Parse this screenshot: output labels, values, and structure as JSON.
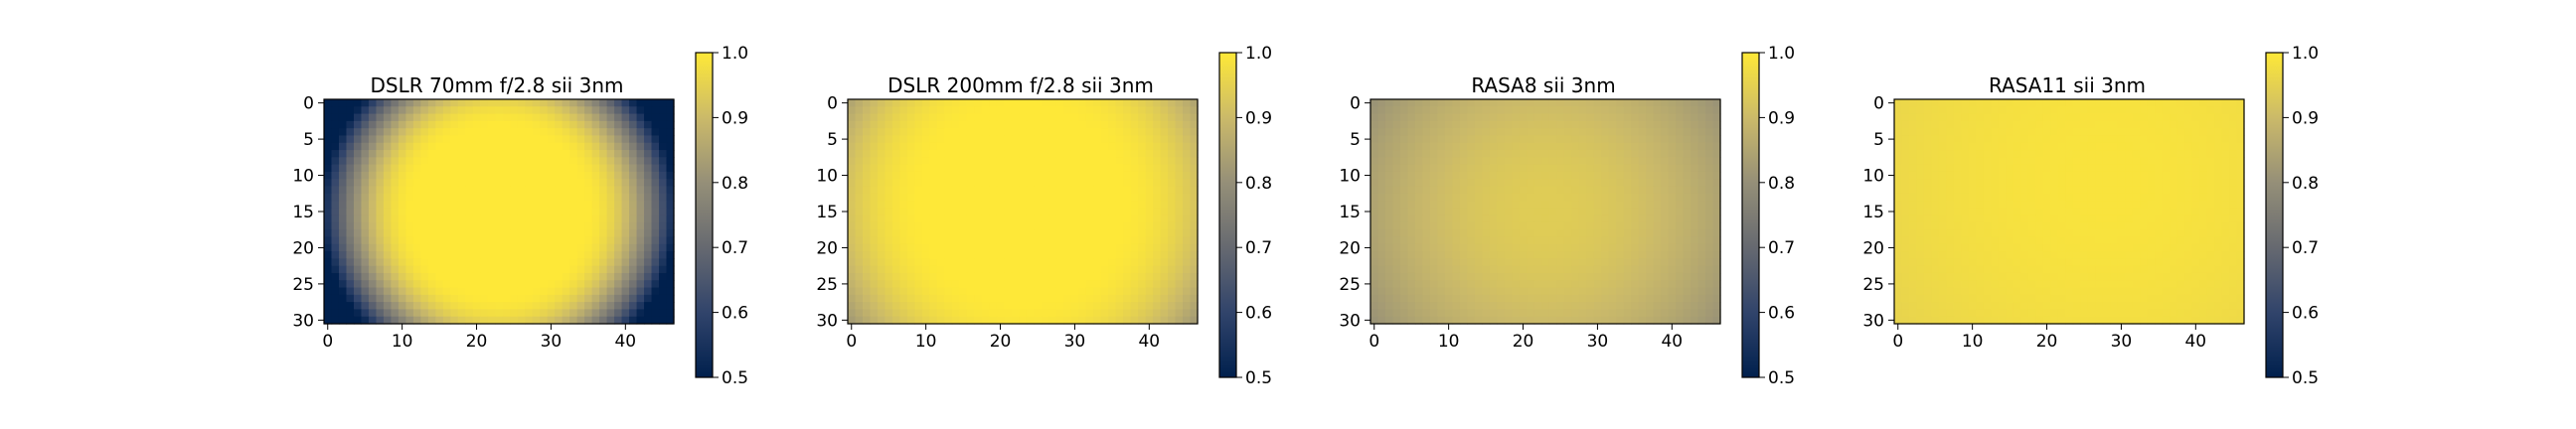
{
  "figure": {
    "colormap": {
      "name": "cividis",
      "stops": [
        "#00204d",
        "#31446b",
        "#666970",
        "#958f78",
        "#cbba69",
        "#fee838"
      ]
    }
  },
  "chart_data": [
    {
      "type": "heatmap",
      "title": "DSLR 70mm f/2.8 sii 3nm",
      "xlabel": "",
      "ylabel": "",
      "grid": {
        "cols": 47,
        "rows": 31
      },
      "xlim": [
        -0.5,
        46.5
      ],
      "ylim": [
        30.5,
        -0.5
      ],
      "x_ticks": [
        0,
        10,
        20,
        30,
        40
      ],
      "y_ticks": [
        0,
        5,
        10,
        15,
        20,
        25,
        30
      ],
      "value_range": [
        0.5,
        1.0
      ],
      "colorbar_ticks": [
        "0.5",
        "0.6",
        "0.7",
        "0.8",
        "0.9",
        "1.0"
      ],
      "field": {
        "center": [
          23,
          15
        ],
        "max": 1.0,
        "radius": 11.5,
        "falloff": 0.0033,
        "floor": 0.5
      }
    },
    {
      "type": "heatmap",
      "title": "DSLR 200mm f/2.8 sii 3nm",
      "xlabel": "",
      "ylabel": "",
      "grid": {
        "cols": 47,
        "rows": 31
      },
      "xlim": [
        -0.5,
        46.5
      ],
      "ylim": [
        30.5,
        -0.5
      ],
      "x_ticks": [
        0,
        10,
        20,
        30,
        40
      ],
      "y_ticks": [
        0,
        5,
        10,
        15,
        20,
        25,
        30
      ],
      "value_range": [
        0.5,
        1.0
      ],
      "colorbar_ticks": [
        "0.5",
        "0.6",
        "0.7",
        "0.8",
        "0.9",
        "1.0"
      ],
      "field": {
        "center": [
          23,
          14
        ],
        "max": 1.0,
        "radius": 13,
        "falloff": 0.00075,
        "floor": 0.5
      }
    },
    {
      "type": "heatmap",
      "title": "RASA8 sii 3nm",
      "xlabel": "",
      "ylabel": "",
      "grid": {
        "cols": 47,
        "rows": 31
      },
      "xlim": [
        -0.5,
        46.5
      ],
      "ylim": [
        30.5,
        -0.5
      ],
      "x_ticks": [
        0,
        10,
        20,
        30,
        40
      ],
      "y_ticks": [
        0,
        5,
        10,
        15,
        20,
        25,
        30
      ],
      "value_range": [
        0.5,
        1.0
      ],
      "colorbar_ticks": [
        "0.5",
        "0.6",
        "0.7",
        "0.8",
        "0.9",
        "1.0"
      ],
      "field": {
        "center": [
          23,
          15
        ],
        "max": 0.94,
        "radius": 0,
        "falloff": 0.00017,
        "floor": 0.5
      }
    },
    {
      "type": "heatmap",
      "title": "RASA11 sii 3nm",
      "xlabel": "",
      "ylabel": "",
      "grid": {
        "cols": 47,
        "rows": 31
      },
      "xlim": [
        -0.5,
        46.5
      ],
      "ylim": [
        30.5,
        -0.5
      ],
      "x_ticks": [
        0,
        10,
        20,
        30,
        40
      ],
      "y_ticks": [
        0,
        5,
        10,
        15,
        20,
        25,
        30
      ],
      "value_range": [
        0.5,
        1.0
      ],
      "colorbar_ticks": [
        "0.5",
        "0.6",
        "0.7",
        "0.8",
        "0.9",
        "1.0"
      ],
      "field": {
        "center": [
          28,
          11
        ],
        "max": 0.99,
        "radius": 0,
        "falloff": 3e-05,
        "floor": 0.5
      }
    }
  ]
}
